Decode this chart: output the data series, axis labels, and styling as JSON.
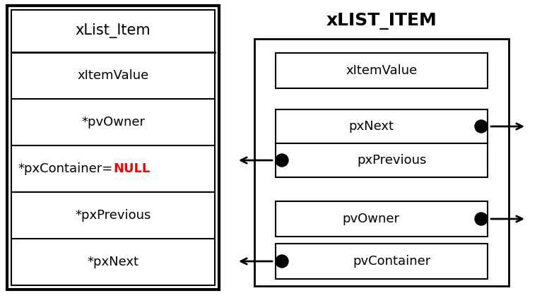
{
  "fig_width": 7.84,
  "fig_height": 4.22,
  "dpi": 100,
  "bg_color": "#ffffff",
  "left_title": "xList_Item",
  "left_rows": [
    "xItemValue",
    "*pvOwner",
    "*pxContainer=NULL",
    "*pxPrevious",
    "*pxNext"
  ],
  "right_title": "xLIST_ITEM",
  "right_fields": [
    {
      "label": "xItemValue",
      "dot": null
    },
    {
      "label": "pxNext",
      "dot": "right"
    },
    {
      "label": "pxPrevious",
      "dot": "left"
    },
    {
      "label": "pvOwner",
      "dot": "right"
    },
    {
      "label": "pvContainer",
      "dot": "left"
    }
  ],
  "font_size_left_title": 15,
  "font_size_right_title": 18,
  "font_size_label": 13
}
